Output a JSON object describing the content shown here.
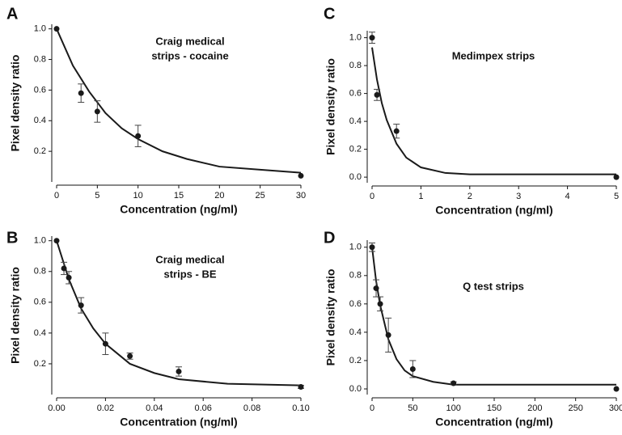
{
  "chart_data": [
    {
      "type": "scatter",
      "panel_label": "A",
      "title": [
        "Craig medical",
        "strips - cocaine"
      ],
      "x_label": "Concentration (ng/ml)",
      "y_label": "Pixel density ratio",
      "color": "#1a1a1a",
      "xlim": [
        0,
        30
      ],
      "xticks": [
        0,
        5,
        10,
        15,
        20,
        25,
        30
      ],
      "ylim": [
        0,
        1.03
      ],
      "yticks": [
        0.2,
        0.4,
        0.6,
        0.8,
        {
          "value": 1,
          "label": "1.0"
        }
      ],
      "x": [
        0,
        3,
        5,
        10,
        30
      ],
      "values": [
        1.0,
        0.58,
        0.46,
        0.3,
        0.04
      ],
      "errors": [
        0,
        0.06,
        0.07,
        0.07,
        0
      ],
      "fit": {
        "x": [
          0,
          2,
          4,
          6,
          8,
          10,
          13,
          16,
          20,
          25,
          30
        ],
        "values": [
          1.0,
          0.76,
          0.59,
          0.45,
          0.35,
          0.28,
          0.2,
          0.15,
          0.1,
          0.08,
          0.06
        ]
      }
    },
    {
      "type": "scatter",
      "panel_label": "C",
      "title": [
        "Medimpex strips"
      ],
      "x_label": "Concentration (ng/ml)",
      "y_label": "Pixel density ratio",
      "color": "#1a1a1a",
      "xlim": [
        0,
        5
      ],
      "xticks": [
        0,
        1,
        2,
        3,
        4,
        5
      ],
      "ylim": [
        -0.04,
        1.05
      ],
      "yticks": [
        {
          "value": 0,
          "label": "0.0"
        },
        0.2,
        0.4,
        0.6,
        0.8,
        {
          "value": 1,
          "label": "1.0"
        }
      ],
      "x": [
        0,
        0.1,
        0.5,
        5
      ],
      "values": [
        1.0,
        0.59,
        0.33,
        0.0
      ],
      "errors": [
        0.04,
        0.04,
        0.05,
        0
      ],
      "fit": {
        "x": [
          0,
          0.1,
          0.2,
          0.3,
          0.5,
          0.7,
          1,
          1.5,
          2,
          3,
          5
        ],
        "values": [
          0.93,
          0.7,
          0.53,
          0.41,
          0.24,
          0.14,
          0.07,
          0.03,
          0.02,
          0.02,
          0.02
        ]
      }
    },
    {
      "type": "scatter",
      "panel_label": "B",
      "title": [
        "Craig medical",
        "strips - BE"
      ],
      "x_label": "Concentration (ng/ml)",
      "y_label": "Pixel density ratio",
      "color": "#1a1a1a",
      "xlim": [
        0,
        0.1
      ],
      "xticks": [
        {
          "value": 0,
          "label": "0.00"
        },
        0.02,
        0.04,
        0.06,
        0.08,
        {
          "value": 0.1,
          "label": "0.10"
        }
      ],
      "ylim": [
        0,
        1.03
      ],
      "yticks": [
        0.2,
        0.4,
        0.6,
        0.8,
        {
          "value": 1,
          "label": "1.0"
        }
      ],
      "x": [
        0,
        0.003,
        0.005,
        0.01,
        0.02,
        0.03,
        0.05,
        0.1
      ],
      "values": [
        1.0,
        0.82,
        0.76,
        0.58,
        0.33,
        0.25,
        0.15,
        0.05
      ],
      "errors": [
        0,
        0.04,
        0.04,
        0.05,
        0.07,
        0.02,
        0.03,
        0.01
      ],
      "fit": {
        "x": [
          0,
          0.005,
          0.01,
          0.015,
          0.02,
          0.03,
          0.04,
          0.05,
          0.07,
          0.1
        ],
        "values": [
          1.0,
          0.75,
          0.56,
          0.43,
          0.33,
          0.2,
          0.14,
          0.1,
          0.07,
          0.06
        ]
      }
    },
    {
      "type": "scatter",
      "panel_label": "D",
      "title": [
        "Q test strips"
      ],
      "x_label": "Concentration (ng/ml)",
      "y_label": "Pixel density ratio",
      "color": "#1a1a1a",
      "xlim": [
        0,
        300
      ],
      "xticks": [
        0,
        50,
        100,
        150,
        200,
        250,
        300
      ],
      "ylim": [
        -0.04,
        1.05
      ],
      "yticks": [
        {
          "value": 0,
          "label": "0.0"
        },
        0.2,
        0.4,
        0.6,
        0.8,
        {
          "value": 1,
          "label": "1.0"
        }
      ],
      "x": [
        0,
        5,
        10,
        20,
        50,
        100,
        300
      ],
      "values": [
        1.0,
        0.71,
        0.6,
        0.38,
        0.14,
        0.04,
        0.0
      ],
      "errors": [
        0.03,
        0.06,
        0.05,
        0.12,
        0.06,
        0.01,
        0
      ],
      "fit": {
        "x": [
          0,
          5,
          10,
          20,
          30,
          40,
          50,
          75,
          100,
          150,
          200,
          300
        ],
        "values": [
          1.0,
          0.76,
          0.59,
          0.35,
          0.21,
          0.13,
          0.09,
          0.05,
          0.03,
          0.03,
          0.03,
          0.03
        ]
      }
    }
  ]
}
